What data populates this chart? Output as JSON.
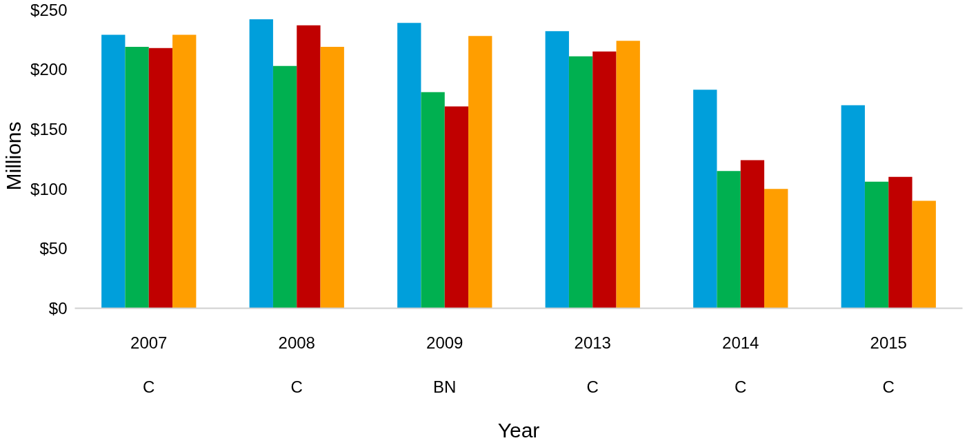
{
  "chart_data": {
    "type": "bar",
    "xlabel": "Year",
    "ylabel": "Millions",
    "categories": [
      "2007\n\nC",
      "2008\n\nC",
      "2009\n\nBN",
      "2013\n\nC",
      "2014\n\nC",
      "2015\n\nC"
    ],
    "series": [
      {
        "color": "#009fdb",
        "values": [
          229,
          242,
          239,
          232,
          183,
          170
        ]
      },
      {
        "color": "#00b050",
        "values": [
          219,
          203,
          181,
          211,
          115,
          106
        ]
      },
      {
        "color": "#c00000",
        "values": [
          218,
          237,
          169,
          215,
          124,
          110
        ]
      },
      {
        "color": "#ff9e00",
        "values": [
          229,
          219,
          228,
          224,
          100,
          90
        ]
      }
    ],
    "ylim": [
      0,
      250
    ],
    "yticks": [
      {
        "value": 0,
        "label": "$0"
      },
      {
        "value": 50,
        "label": "$50"
      },
      {
        "value": 100,
        "label": "$100"
      },
      {
        "value": 150,
        "label": "$150"
      },
      {
        "value": 200,
        "label": "$200"
      },
      {
        "value": 250,
        "label": "$250"
      }
    ],
    "grid": false
  }
}
